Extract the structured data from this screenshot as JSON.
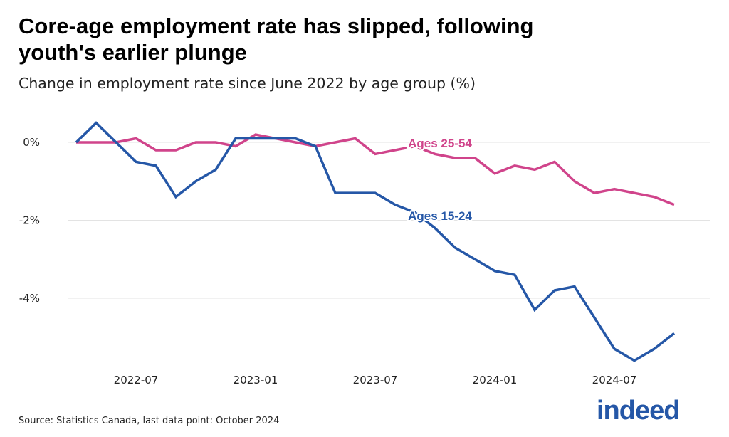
{
  "chart_data": {
    "type": "line",
    "title": "Core-age employment rate has slipped, following youth's earlier plunge",
    "subtitle": "Change in employment rate since June 2022 by age group (%)",
    "source": "Source: Statistics Canada, last data point: October 2024",
    "xlabel": "",
    "ylabel": "",
    "x_start": "2022-04",
    "x_end": "2024-10",
    "x_ticks": [
      "2022-07",
      "2023-01",
      "2023-07",
      "2024-01",
      "2024-07"
    ],
    "y_ticks": [
      0,
      -2,
      -4
    ],
    "y_tick_labels": [
      "0%",
      "-2%",
      "-4%"
    ],
    "ylim": [
      -5.8,
      0.75
    ],
    "grid": "horizontal",
    "series": [
      {
        "name": "Ages 25-54",
        "color": "#d0448b",
        "values": [
          0,
          0,
          0,
          0.1,
          -0.2,
          -0.2,
          0,
          0,
          -0.1,
          0.2,
          0.1,
          0,
          -0.1,
          0,
          0.1,
          -0.3,
          -0.2,
          -0.1,
          -0.3,
          -0.4,
          -0.4,
          -0.8,
          -0.6,
          -0.7,
          -0.5,
          -1.0,
          -1.3,
          -1.2,
          -1.3,
          -1.4,
          -1.6
        ]
      },
      {
        "name": "Ages 15-24",
        "color": "#2557a7",
        "values": [
          0,
          0.5,
          0,
          -0.5,
          -0.6,
          -1.4,
          -1.0,
          -0.7,
          0.1,
          0.1,
          0.1,
          0.1,
          -0.1,
          -1.3,
          -1.3,
          -1.3,
          -1.6,
          -1.8,
          -2.2,
          -2.7,
          -3.0,
          -3.3,
          -3.4,
          -4.3,
          -3.8,
          -3.7,
          -4.5,
          -5.3,
          -5.6,
          -5.3,
          -4.9
        ]
      }
    ]
  },
  "brand": {
    "logo_text": "indeed",
    "color": "#2557a7"
  }
}
